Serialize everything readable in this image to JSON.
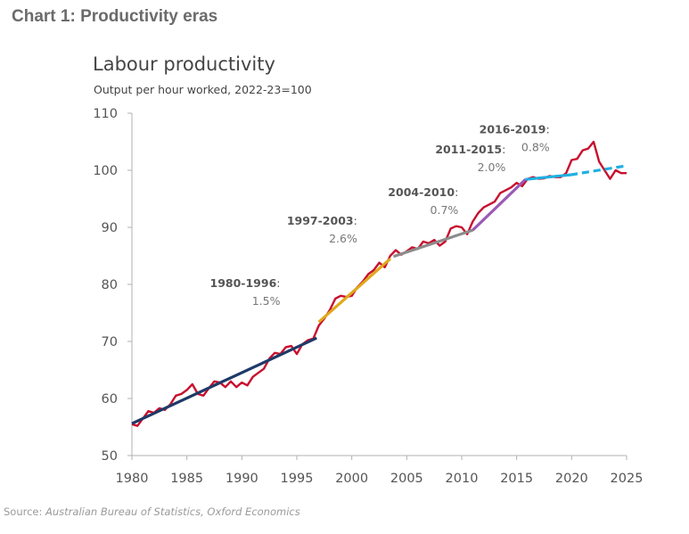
{
  "page": {
    "heading": "Chart 1: Productivity eras",
    "source_label": "Source: ",
    "source_text": "Australian Bureau of Statistics, Oxford Economics"
  },
  "chart_data": {
    "type": "line",
    "title": "Labour productivity",
    "subtitle": "Output per hour worked, 2022-23=100",
    "xlabel": "",
    "ylabel": "",
    "xlim": [
      1980,
      2025
    ],
    "ylim": [
      50,
      110
    ],
    "x_ticks": [
      1980,
      1985,
      1990,
      1995,
      2000,
      2005,
      2010,
      2015,
      2020,
      2025
    ],
    "y_ticks": [
      50,
      60,
      70,
      80,
      90,
      100,
      110
    ],
    "grid": false,
    "legend": "none",
    "series": [
      {
        "name": "Labour productivity",
        "color": "#c8102e",
        "x": [
          1980.0,
          1980.5,
          1981.0,
          1981.5,
          1982.0,
          1982.5,
          1983.0,
          1983.5,
          1984.0,
          1984.5,
          1985.0,
          1985.5,
          1986.0,
          1986.5,
          1987.0,
          1987.5,
          1988.0,
          1988.5,
          1989.0,
          1989.5,
          1990.0,
          1990.5,
          1991.0,
          1991.5,
          1992.0,
          1992.5,
          1993.0,
          1993.5,
          1994.0,
          1994.5,
          1995.0,
          1995.5,
          1996.0,
          1996.5,
          1997.0,
          1997.5,
          1998.0,
          1998.5,
          1999.0,
          1999.5,
          2000.0,
          2000.5,
          2001.0,
          2001.5,
          2002.0,
          2002.5,
          2003.0,
          2003.5,
          2004.0,
          2004.5,
          2005.0,
          2005.5,
          2006.0,
          2006.5,
          2007.0,
          2007.5,
          2008.0,
          2008.5,
          2009.0,
          2009.5,
          2010.0,
          2010.5,
          2011.0,
          2011.5,
          2012.0,
          2012.5,
          2013.0,
          2013.5,
          2014.0,
          2014.5,
          2015.0,
          2015.5,
          2016.0,
          2016.5,
          2017.0,
          2017.5,
          2018.0,
          2018.5,
          2019.0,
          2019.5,
          2020.0,
          2020.5,
          2021.0,
          2021.5,
          2022.0,
          2022.5,
          2023.0,
          2023.5,
          2024.0,
          2024.5,
          2025.0
        ],
        "values": [
          55.5,
          55.2,
          56.5,
          57.8,
          57.5,
          58.3,
          58.0,
          59.0,
          60.5,
          60.8,
          61.5,
          62.5,
          60.8,
          60.5,
          61.8,
          63.0,
          62.8,
          62.0,
          63.0,
          62.0,
          62.8,
          62.3,
          63.8,
          64.5,
          65.2,
          67.0,
          68.0,
          67.8,
          69.0,
          69.2,
          67.8,
          69.5,
          70.2,
          70.5,
          72.8,
          74.0,
          75.5,
          77.5,
          78.0,
          77.8,
          78.0,
          79.5,
          80.5,
          81.8,
          82.5,
          83.8,
          83.0,
          85.0,
          86.0,
          85.2,
          85.8,
          86.5,
          86.2,
          87.5,
          87.2,
          87.8,
          86.8,
          87.5,
          89.8,
          90.2,
          90.0,
          88.8,
          91.0,
          92.5,
          93.5,
          94.0,
          94.5,
          96.0,
          96.5,
          97.0,
          97.8,
          97.2,
          98.5,
          98.8,
          98.5,
          98.6,
          99.0,
          98.8,
          98.8,
          99.5,
          101.8,
          102.0,
          103.5,
          103.8,
          105.0,
          101.5,
          100.0,
          98.5,
          100.0,
          99.5,
          99.5
        ]
      }
    ],
    "trend_lines": [
      {
        "name": "1980-1996",
        "rate": "1.5%",
        "color": "#1f3a68",
        "x": [
          1980.0,
          1996.8
        ],
        "y": [
          55.6,
          70.6
        ],
        "dashed": false
      },
      {
        "name": "1997-2003",
        "rate": "2.6%",
        "color": "#e0a81c",
        "x": [
          1997.0,
          2003.5
        ],
        "y": [
          73.4,
          84.5
        ],
        "dashed": false
      },
      {
        "name": "2004-2010",
        "rate": "0.7%",
        "color": "#8c8c8c",
        "x": [
          2003.8,
          2011.0
        ],
        "y": [
          84.9,
          89.5
        ],
        "dashed": false
      },
      {
        "name": "2011-2015",
        "rate": "2.0%",
        "color": "#9b59b6",
        "x": [
          2011.0,
          2015.8
        ],
        "y": [
          89.5,
          98.4
        ],
        "dashed": false
      },
      {
        "name": "2016-2019",
        "rate": "0.8%",
        "color": "#1fb0e0",
        "x": [
          2015.8,
          2019.9
        ],
        "y": [
          98.4,
          99.2
        ],
        "dashed": false
      },
      {
        "name": "2016-2019 extension",
        "rate": "",
        "color": "#1fb0e0",
        "x": [
          2019.9,
          2025.0
        ],
        "y": [
          99.2,
          100.8
        ],
        "dashed": true
      }
    ],
    "annotations": [
      {
        "period": "1980-1996",
        "rate": "1.5%",
        "x": 1993.5,
        "y": 79.5
      },
      {
        "period": "1997-2003",
        "rate": "2.6%",
        "x": 2000.5,
        "y": 90.5
      },
      {
        "period": "2004-2010",
        "rate": "0.7%",
        "x": 2009.7,
        "y": 95.5
      },
      {
        "period": "2011-2015",
        "rate": "2.0%",
        "x": 2014.0,
        "y": 103.0
      },
      {
        "period": "2016-2019",
        "rate": "0.8%",
        "x": 2018.0,
        "y": 106.5
      }
    ]
  }
}
